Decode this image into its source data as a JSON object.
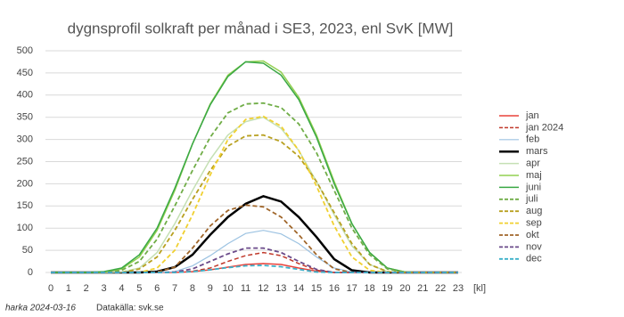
{
  "chart_data": {
    "type": "line",
    "title": "dygnsprofil solkraft per månad i SE3, 2023, enl SvK [MW]",
    "x_label": "[kl]",
    "x": [
      0,
      1,
      2,
      3,
      4,
      5,
      6,
      7,
      8,
      9,
      10,
      11,
      12,
      13,
      14,
      15,
      16,
      17,
      18,
      19,
      20,
      21,
      22,
      23
    ],
    "xlim": [
      0,
      23
    ],
    "xticks": [
      0,
      1,
      2,
      3,
      4,
      5,
      6,
      7,
      8,
      9,
      10,
      11,
      12,
      13,
      14,
      15,
      16,
      17,
      18,
      19,
      20,
      21,
      22,
      23
    ],
    "ylim": [
      0,
      500
    ],
    "yticks": [
      0,
      50,
      100,
      150,
      200,
      250,
      300,
      350,
      400,
      450,
      500
    ],
    "grid": true,
    "legend": "right",
    "series": [
      {
        "name": "jan",
        "color": "#e8423a",
        "dash": false,
        "width": 1.5,
        "values": [
          0,
          0,
          0,
          0,
          0,
          0,
          0,
          0,
          2,
          6,
          12,
          18,
          20,
          18,
          10,
          3,
          0,
          0,
          0,
          0,
          0,
          0,
          0,
          0
        ]
      },
      {
        "name": "jan 2024",
        "color": "#c0392b",
        "dash": true,
        "width": 1.5,
        "values": [
          0,
          0,
          0,
          0,
          0,
          0,
          0,
          0,
          3,
          10,
          25,
          38,
          45,
          38,
          20,
          5,
          0,
          0,
          0,
          0,
          0,
          0,
          0,
          0
        ]
      },
      {
        "name": "feb",
        "color": "#9dc3e2",
        "dash": false,
        "width": 1.2,
        "values": [
          0,
          0,
          0,
          0,
          0,
          0,
          0,
          2,
          15,
          38,
          65,
          88,
          95,
          87,
          65,
          35,
          10,
          1,
          0,
          0,
          0,
          0,
          0,
          0
        ]
      },
      {
        "name": "mars",
        "color": "#000000",
        "dash": false,
        "width": 2.5,
        "values": [
          0,
          0,
          0,
          0,
          0,
          0,
          2,
          12,
          40,
          85,
          125,
          155,
          172,
          160,
          125,
          80,
          30,
          5,
          0,
          0,
          0,
          0,
          0,
          0
        ]
      },
      {
        "name": "apr",
        "color": "#c5e0b4",
        "dash": false,
        "width": 1.5,
        "values": [
          0,
          0,
          0,
          0,
          1,
          10,
          45,
          110,
          185,
          255,
          310,
          340,
          350,
          325,
          275,
          205,
          130,
          60,
          18,
          2,
          0,
          0,
          0,
          0
        ]
      },
      {
        "name": "maj",
        "color": "#92d050",
        "dash": false,
        "width": 1.5,
        "values": [
          0,
          0,
          0,
          1,
          8,
          35,
          95,
          185,
          290,
          380,
          445,
          475,
          477,
          452,
          395,
          310,
          205,
          110,
          45,
          10,
          1,
          0,
          0,
          0
        ]
      },
      {
        "name": "juni",
        "color": "#3aa845",
        "dash": false,
        "width": 1.5,
        "values": [
          0,
          0,
          0,
          2,
          10,
          40,
          100,
          190,
          290,
          378,
          442,
          475,
          472,
          445,
          390,
          305,
          200,
          110,
          45,
          10,
          1,
          0,
          0,
          0
        ]
      },
      {
        "name": "juli",
        "color": "#70ad47",
        "dash": true,
        "width": 1.8,
        "values": [
          0,
          0,
          0,
          0,
          5,
          25,
          75,
          150,
          230,
          305,
          360,
          380,
          382,
          372,
          335,
          270,
          185,
          100,
          40,
          8,
          1,
          0,
          0,
          0
        ]
      },
      {
        "name": "aug",
        "color": "#b8a020",
        "dash": true,
        "width": 1.8,
        "values": [
          0,
          0,
          0,
          0,
          0,
          8,
          35,
          95,
          165,
          230,
          285,
          308,
          310,
          295,
          262,
          205,
          135,
          65,
          18,
          2,
          0,
          0,
          0,
          0
        ]
      },
      {
        "name": "sep",
        "color": "#f0d030",
        "dash": true,
        "width": 1.8,
        "values": [
          0,
          0,
          0,
          0,
          0,
          0,
          10,
          50,
          130,
          220,
          300,
          345,
          352,
          330,
          275,
          195,
          105,
          35,
          5,
          0,
          0,
          0,
          0,
          0
        ]
      },
      {
        "name": "okt",
        "color": "#a0662a",
        "dash": true,
        "width": 1.8,
        "values": [
          0,
          0,
          0,
          0,
          0,
          0,
          1,
          12,
          55,
          105,
          140,
          152,
          148,
          125,
          85,
          40,
          8,
          0,
          0,
          0,
          0,
          0,
          0,
          0
        ]
      },
      {
        "name": "nov",
        "color": "#6a4a8a",
        "dash": true,
        "width": 1.8,
        "values": [
          0,
          0,
          0,
          0,
          0,
          0,
          0,
          1,
          8,
          25,
          42,
          55,
          55,
          45,
          25,
          7,
          0,
          0,
          0,
          0,
          0,
          0,
          0,
          0
        ]
      },
      {
        "name": "dec",
        "color": "#3bb0c9",
        "dash": true,
        "width": 1.8,
        "values": [
          0,
          0,
          0,
          0,
          0,
          0,
          0,
          0,
          2,
          6,
          11,
          15,
          16,
          13,
          7,
          1,
          0,
          0,
          0,
          0,
          0,
          0,
          0,
          0
        ]
      }
    ],
    "footer_left": "harka 2024-03-16",
    "footer_right": "Datakälla: svk.se"
  }
}
